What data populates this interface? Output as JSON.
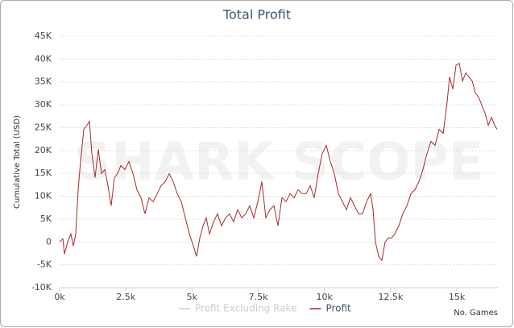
{
  "chart_data": {
    "type": "line",
    "title": "Total Profit",
    "y_label": "Cumulative Total (USD)",
    "x_label": "No. Games",
    "watermark": "SHARK SCOPE",
    "xlim": [
      0,
      16550
    ],
    "ylim": [
      -10000,
      45000
    ],
    "xticks": [
      {
        "value": 0,
        "label": "0k"
      },
      {
        "value": 2500,
        "label": "2.5k"
      },
      {
        "value": 5000,
        "label": "5k"
      },
      {
        "value": 7500,
        "label": "7.5k"
      },
      {
        "value": 10000,
        "label": "10k"
      },
      {
        "value": 12500,
        "label": "12.5k"
      },
      {
        "value": 15000,
        "label": "15k"
      }
    ],
    "yticks": [
      {
        "value": -10000,
        "label": "-10K"
      },
      {
        "value": -5000,
        "label": "-5K"
      },
      0,
      {
        "value": 5000,
        "label": "5K"
      },
      {
        "value": 10000,
        "label": "10K"
      },
      {
        "value": 15000,
        "label": "15K"
      },
      {
        "value": 20000,
        "label": "20K"
      },
      {
        "value": 25000,
        "label": "25K"
      },
      {
        "value": 30000,
        "label": "30K"
      },
      {
        "value": 35000,
        "label": "35K"
      },
      {
        "value": 40000,
        "label": "40K"
      },
      {
        "value": 45000,
        "label": "45K"
      }
    ],
    "grid": true,
    "x": [
      0,
      122,
      183,
      304,
      426,
      517,
      609,
      700,
      791,
      913,
      1034,
      1126,
      1217,
      1339,
      1460,
      1582,
      1704,
      1826,
      1947,
      2069,
      2191,
      2312,
      2465,
      2617,
      2769,
      2921,
      3073,
      3225,
      3377,
      3529,
      3682,
      3834,
      3986,
      4138,
      4290,
      4442,
      4594,
      4746,
      4899,
      5051,
      5172,
      5294,
      5416,
      5538,
      5659,
      5811,
      5963,
      6115,
      6268,
      6420,
      6572,
      6724,
      6876,
      7028,
      7181,
      7333,
      7485,
      7637,
      7789,
      7941,
      8093,
      8245,
      8398,
      8550,
      8702,
      8854,
      9006,
      9158,
      9310,
      9463,
      9615,
      9767,
      9919,
      10071,
      10223,
      10375,
      10527,
      10680,
      10832,
      10984,
      11136,
      11288,
      11440,
      11592,
      11745,
      11836,
      11927,
      12049,
      12170,
      12292,
      12414,
      12535,
      12657,
      12809,
      12961,
      13114,
      13266,
      13418,
      13570,
      13722,
      13874,
      14026,
      14178,
      14331,
      14483,
      14635,
      14726,
      14848,
      14970,
      15091,
      15213,
      15335,
      15456,
      15578,
      15700,
      15822,
      15943,
      16065,
      16187,
      16308,
      16430,
      16521
    ],
    "series": [
      {
        "name": "Profit Excluding Rake",
        "color": "#cccccc",
        "hidden": true
      },
      {
        "name": "Profit",
        "color": "#a52a2a",
        "values": [
          0,
          704,
          -2641,
          0,
          1761,
          -880,
          1761,
          11444,
          17606,
          24648,
          25529,
          26409,
          19367,
          14085,
          20247,
          14965,
          15845,
          12324,
          7923,
          14085,
          14965,
          16726,
          15845,
          17606,
          14965,
          11444,
          9683,
          6162,
          9683,
          8803,
          10564,
          12324,
          13205,
          14965,
          13205,
          10564,
          8803,
          5282,
          1761,
          -880,
          -3169,
          880,
          3521,
          5282,
          1761,
          4401,
          6162,
          3521,
          5282,
          6162,
          4401,
          7042,
          5282,
          6162,
          7923,
          5282,
          8803,
          13205,
          5282,
          7042,
          7923,
          3521,
          9683,
          8803,
          10564,
          9683,
          11444,
          10564,
          10564,
          12324,
          9683,
          14965,
          19367,
          21127,
          17606,
          14965,
          10564,
          8803,
          7042,
          9683,
          7923,
          6162,
          6162,
          8803,
          10564,
          7042,
          0,
          -3169,
          -4049,
          0,
          880,
          880,
          1761,
          3521,
          6162,
          7923,
          10564,
          11444,
          13205,
          15845,
          19367,
          22007,
          21127,
          24648,
          23768,
          30810,
          36092,
          33451,
          38733,
          39085,
          35211,
          36972,
          36092,
          35211,
          32570,
          31690,
          29930,
          28169,
          25528,
          27289,
          25528,
          24648
        ]
      }
    ]
  }
}
